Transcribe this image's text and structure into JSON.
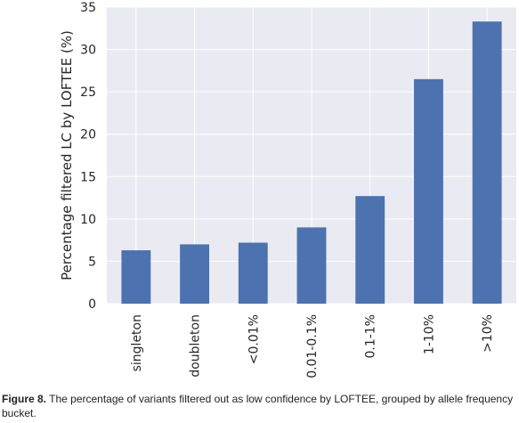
{
  "chart_data": {
    "type": "bar",
    "categories": [
      "singleton",
      "doubleton",
      "<0.01%",
      "0.01-0.1%",
      "0.1-1%",
      "1-10%",
      ">10%"
    ],
    "values": [
      6.3,
      7.0,
      7.2,
      9.0,
      12.7,
      26.5,
      33.3
    ],
    "title": "",
    "xlabel": "",
    "ylabel": "Percentage filtered LC by LOFTEE (%)",
    "ylim": [
      0,
      35
    ],
    "yticks": [
      0,
      5,
      10,
      15,
      20,
      25,
      30,
      35
    ],
    "grid": true,
    "bar_color": "#4c72b0",
    "background": "#eaeaf2",
    "grid_color": "#ffffff"
  },
  "caption": {
    "label": "Figure 8.",
    "text": " The percentage of variants filtered out as low confidence by LOFTEE, grouped by allele frequency bucket."
  }
}
